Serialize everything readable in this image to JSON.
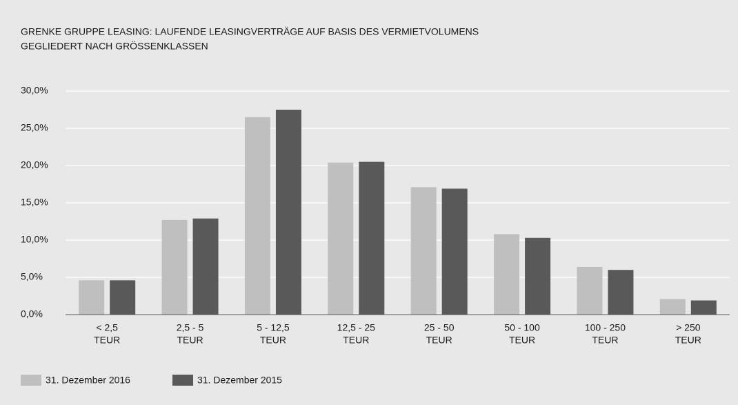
{
  "chart_data": {
    "type": "bar",
    "title": [
      "GRENKE GRUPPE LEASING: LAUFENDE LEASINGVERTRÄGE AUF BASIS DES VERMIETVOLUMENS",
      "GEGLIEDERT NACH GRÖSSENKLASSEN"
    ],
    "categories": [
      [
        "< 2,5",
        "TEUR"
      ],
      [
        "2,5 - 5",
        "TEUR"
      ],
      [
        "5 - 12,5",
        "TEUR"
      ],
      [
        "12,5 - 25",
        "TEUR"
      ],
      [
        "25 - 50",
        "TEUR"
      ],
      [
        "50 - 100",
        "TEUR"
      ],
      [
        "100 - 250",
        "TEUR"
      ],
      [
        "> 250",
        "TEUR"
      ]
    ],
    "series": [
      {
        "name": "31. Dezember 2016",
        "color": "#bfbfbf",
        "values": [
          4.6,
          12.7,
          26.5,
          20.4,
          17.1,
          10.8,
          6.4,
          2.1
        ]
      },
      {
        "name": "31. Dezember 2015",
        "color": "#595959",
        "values": [
          4.6,
          12.9,
          27.5,
          20.5,
          16.9,
          10.3,
          6.0,
          1.9
        ]
      }
    ],
    "ylim": [
      0,
      30
    ],
    "yticks": [
      {
        "value": 0,
        "label": "0,0%"
      },
      {
        "value": 5,
        "label": "5,0%"
      },
      {
        "value": 10,
        "label": "10,0%"
      },
      {
        "value": 15,
        "label": "15,0%"
      },
      {
        "value": 20,
        "label": "20,0%"
      },
      {
        "value": 25,
        "label": "25,0%"
      },
      {
        "value": 30,
        "label": "30,0%"
      }
    ],
    "grid": true,
    "legend": "bottom-left"
  }
}
